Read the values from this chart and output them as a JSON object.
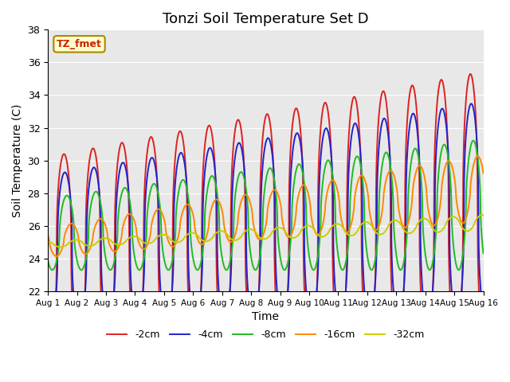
{
  "title": "Tonzi Soil Temperature Set D",
  "xlabel": "Time",
  "ylabel": "Soil Temperature (C)",
  "ylim": [
    22,
    38
  ],
  "xlim": [
    0,
    15
  ],
  "xtick_labels": [
    "Aug 1",
    "Aug 2",
    "Aug 3",
    "Aug 4",
    "Aug 5",
    "Aug 6",
    "Aug 7",
    "Aug 8",
    "Aug 9",
    "Aug 10",
    "Aug 11",
    "Aug 12",
    "Aug 13",
    "Aug 14",
    "Aug 15",
    "Aug 16"
  ],
  "ytick_vals": [
    22,
    24,
    26,
    28,
    30,
    32,
    34,
    36,
    38
  ],
  "series_colors": [
    "#dd2222",
    "#2222cc",
    "#22bb22",
    "#ff8800",
    "#cccc00"
  ],
  "series_labels": [
    "-2cm",
    "-4cm",
    "-8cm",
    "-16cm",
    "-32cm"
  ],
  "label_box_text": "TZ_fmet",
  "label_box_color": "#ffffcc",
  "label_box_edge": "#aa8800",
  "label_text_color": "#cc2200",
  "bg_color": "#e8e8e8",
  "title_fontsize": 13,
  "axis_fontsize": 10,
  "legend_fontsize": 9
}
